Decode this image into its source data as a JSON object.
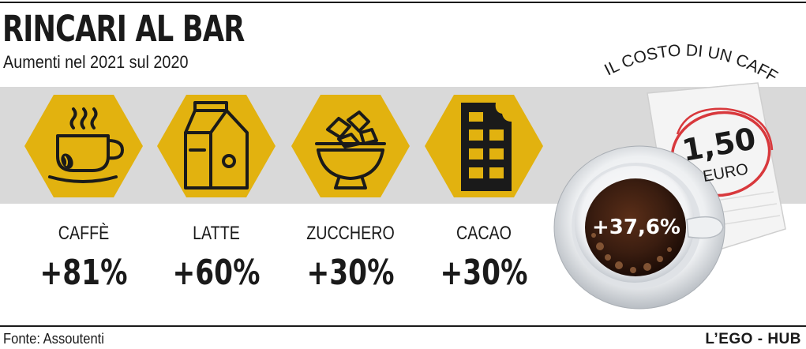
{
  "title": "RINCARI AL BAR",
  "subtitle": "Aumenti nel 2021 sul 2020",
  "items": [
    {
      "label": "CAFFÈ",
      "value": "+81%",
      "icon": "coffee-cup-icon"
    },
    {
      "label": "LATTE",
      "value": "+60%",
      "icon": "milk-carton-icon"
    },
    {
      "label": "ZUCCHERO",
      "value": "+30%",
      "icon": "sugar-bowl-icon"
    },
    {
      "label": "CACAO",
      "value": "+30%",
      "icon": "chocolate-bar-icon"
    }
  ],
  "cost_title": "IL COSTO DI UN CAFFÈ AL BAR",
  "price": {
    "amount": "1,50",
    "unit": "EURO"
  },
  "coffee_increase": "+37,6%",
  "source": "Fonte: Assoutenti",
  "brand": "L’EGO - HUB",
  "colors": {
    "accent": "#e2b20f",
    "band": "#d9d9d9",
    "price_circle": "#d8383c",
    "coffee": "#3a1d10"
  }
}
